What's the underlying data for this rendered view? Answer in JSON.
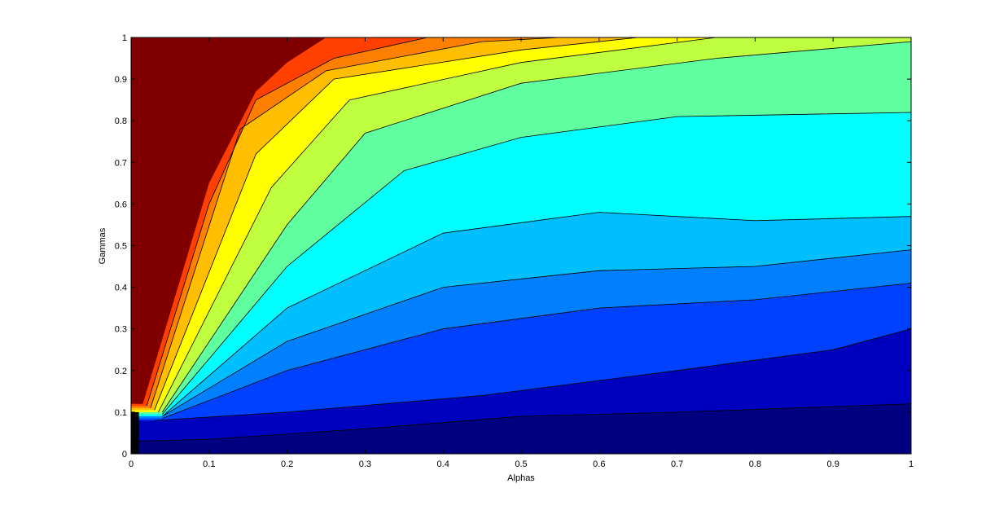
{
  "chart_data": {
    "type": "contour-filled",
    "title": "",
    "xlabel": "Alphas",
    "ylabel": "Gammas",
    "xlim": [
      0,
      1
    ],
    "ylim": [
      0,
      1
    ],
    "x_ticks": [
      "0",
      "0.1",
      "0.2",
      "0.3",
      "0.4",
      "0.5",
      "0.6",
      "0.7",
      "0.8",
      "0.9",
      "1"
    ],
    "y_ticks": [
      "0",
      "0.1",
      "0.2",
      "0.3",
      "0.4",
      "0.5",
      "0.6",
      "0.7",
      "0.8",
      "0.9",
      "1"
    ],
    "grid": false,
    "legend": "none",
    "colormap": "jet",
    "band_colors": [
      "#000080",
      "#0000BF",
      "#0040FF",
      "#0080FF",
      "#00BFFF",
      "#00FFFF",
      "#60FF9F",
      "#BFFF40",
      "#FFFF00",
      "#FFBF00",
      "#FF8000",
      "#FF4000",
      "#CC0000",
      "#800000"
    ],
    "contour_boundaries": [
      {
        "points": [
          [
            0.0,
            0.03
          ],
          [
            0.1,
            0.035
          ],
          [
            0.3,
            0.06
          ],
          [
            0.5,
            0.09
          ],
          [
            0.7,
            0.1
          ],
          [
            1.0,
            0.12
          ]
        ]
      },
      {
        "points": [
          [
            0.03,
            0.08
          ],
          [
            0.2,
            0.1
          ],
          [
            0.45,
            0.14
          ],
          [
            0.7,
            0.2
          ],
          [
            0.9,
            0.25
          ],
          [
            1.0,
            0.3
          ]
        ]
      },
      {
        "points": [
          [
            0.04,
            0.085
          ],
          [
            0.2,
            0.2
          ],
          [
            0.4,
            0.3
          ],
          [
            0.6,
            0.35
          ],
          [
            0.8,
            0.37
          ],
          [
            1.0,
            0.41
          ]
        ]
      },
      {
        "points": [
          [
            0.04,
            0.09
          ],
          [
            0.2,
            0.27
          ],
          [
            0.4,
            0.4
          ],
          [
            0.6,
            0.44
          ],
          [
            0.8,
            0.45
          ],
          [
            1.0,
            0.49
          ]
        ]
      },
      {
        "points": [
          [
            0.04,
            0.09
          ],
          [
            0.2,
            0.35
          ],
          [
            0.4,
            0.53
          ],
          [
            0.6,
            0.58
          ],
          [
            0.8,
            0.56
          ],
          [
            1.0,
            0.57
          ]
        ]
      },
      {
        "points": [
          [
            0.04,
            0.095
          ],
          [
            0.2,
            0.45
          ],
          [
            0.35,
            0.68
          ],
          [
            0.5,
            0.76
          ],
          [
            0.7,
            0.81
          ],
          [
            1.0,
            0.82
          ]
        ]
      },
      {
        "points": [
          [
            0.04,
            0.1
          ],
          [
            0.2,
            0.55
          ],
          [
            0.3,
            0.77
          ],
          [
            0.5,
            0.89
          ],
          [
            0.75,
            0.95
          ],
          [
            1.0,
            0.99
          ]
        ]
      },
      {
        "points": [
          [
            0.035,
            0.1
          ],
          [
            0.18,
            0.64
          ],
          [
            0.28,
            0.85
          ],
          [
            0.5,
            0.94
          ],
          [
            0.75,
            1.0
          ]
        ]
      },
      {
        "points": [
          [
            0.03,
            0.105
          ],
          [
            0.16,
            0.72
          ],
          [
            0.26,
            0.9
          ],
          [
            0.5,
            0.97
          ],
          [
            0.65,
            1.0
          ]
        ]
      },
      {
        "points": [
          [
            0.025,
            0.11
          ],
          [
            0.14,
            0.78
          ],
          [
            0.25,
            0.92
          ],
          [
            0.45,
            0.99
          ],
          [
            0.55,
            1.0
          ]
        ]
      },
      {
        "points": [
          [
            0.02,
            0.115
          ],
          [
            0.1,
            0.6
          ],
          [
            0.16,
            0.85
          ],
          [
            0.26,
            0.95
          ],
          [
            0.38,
            1.0
          ]
        ]
      }
    ]
  }
}
